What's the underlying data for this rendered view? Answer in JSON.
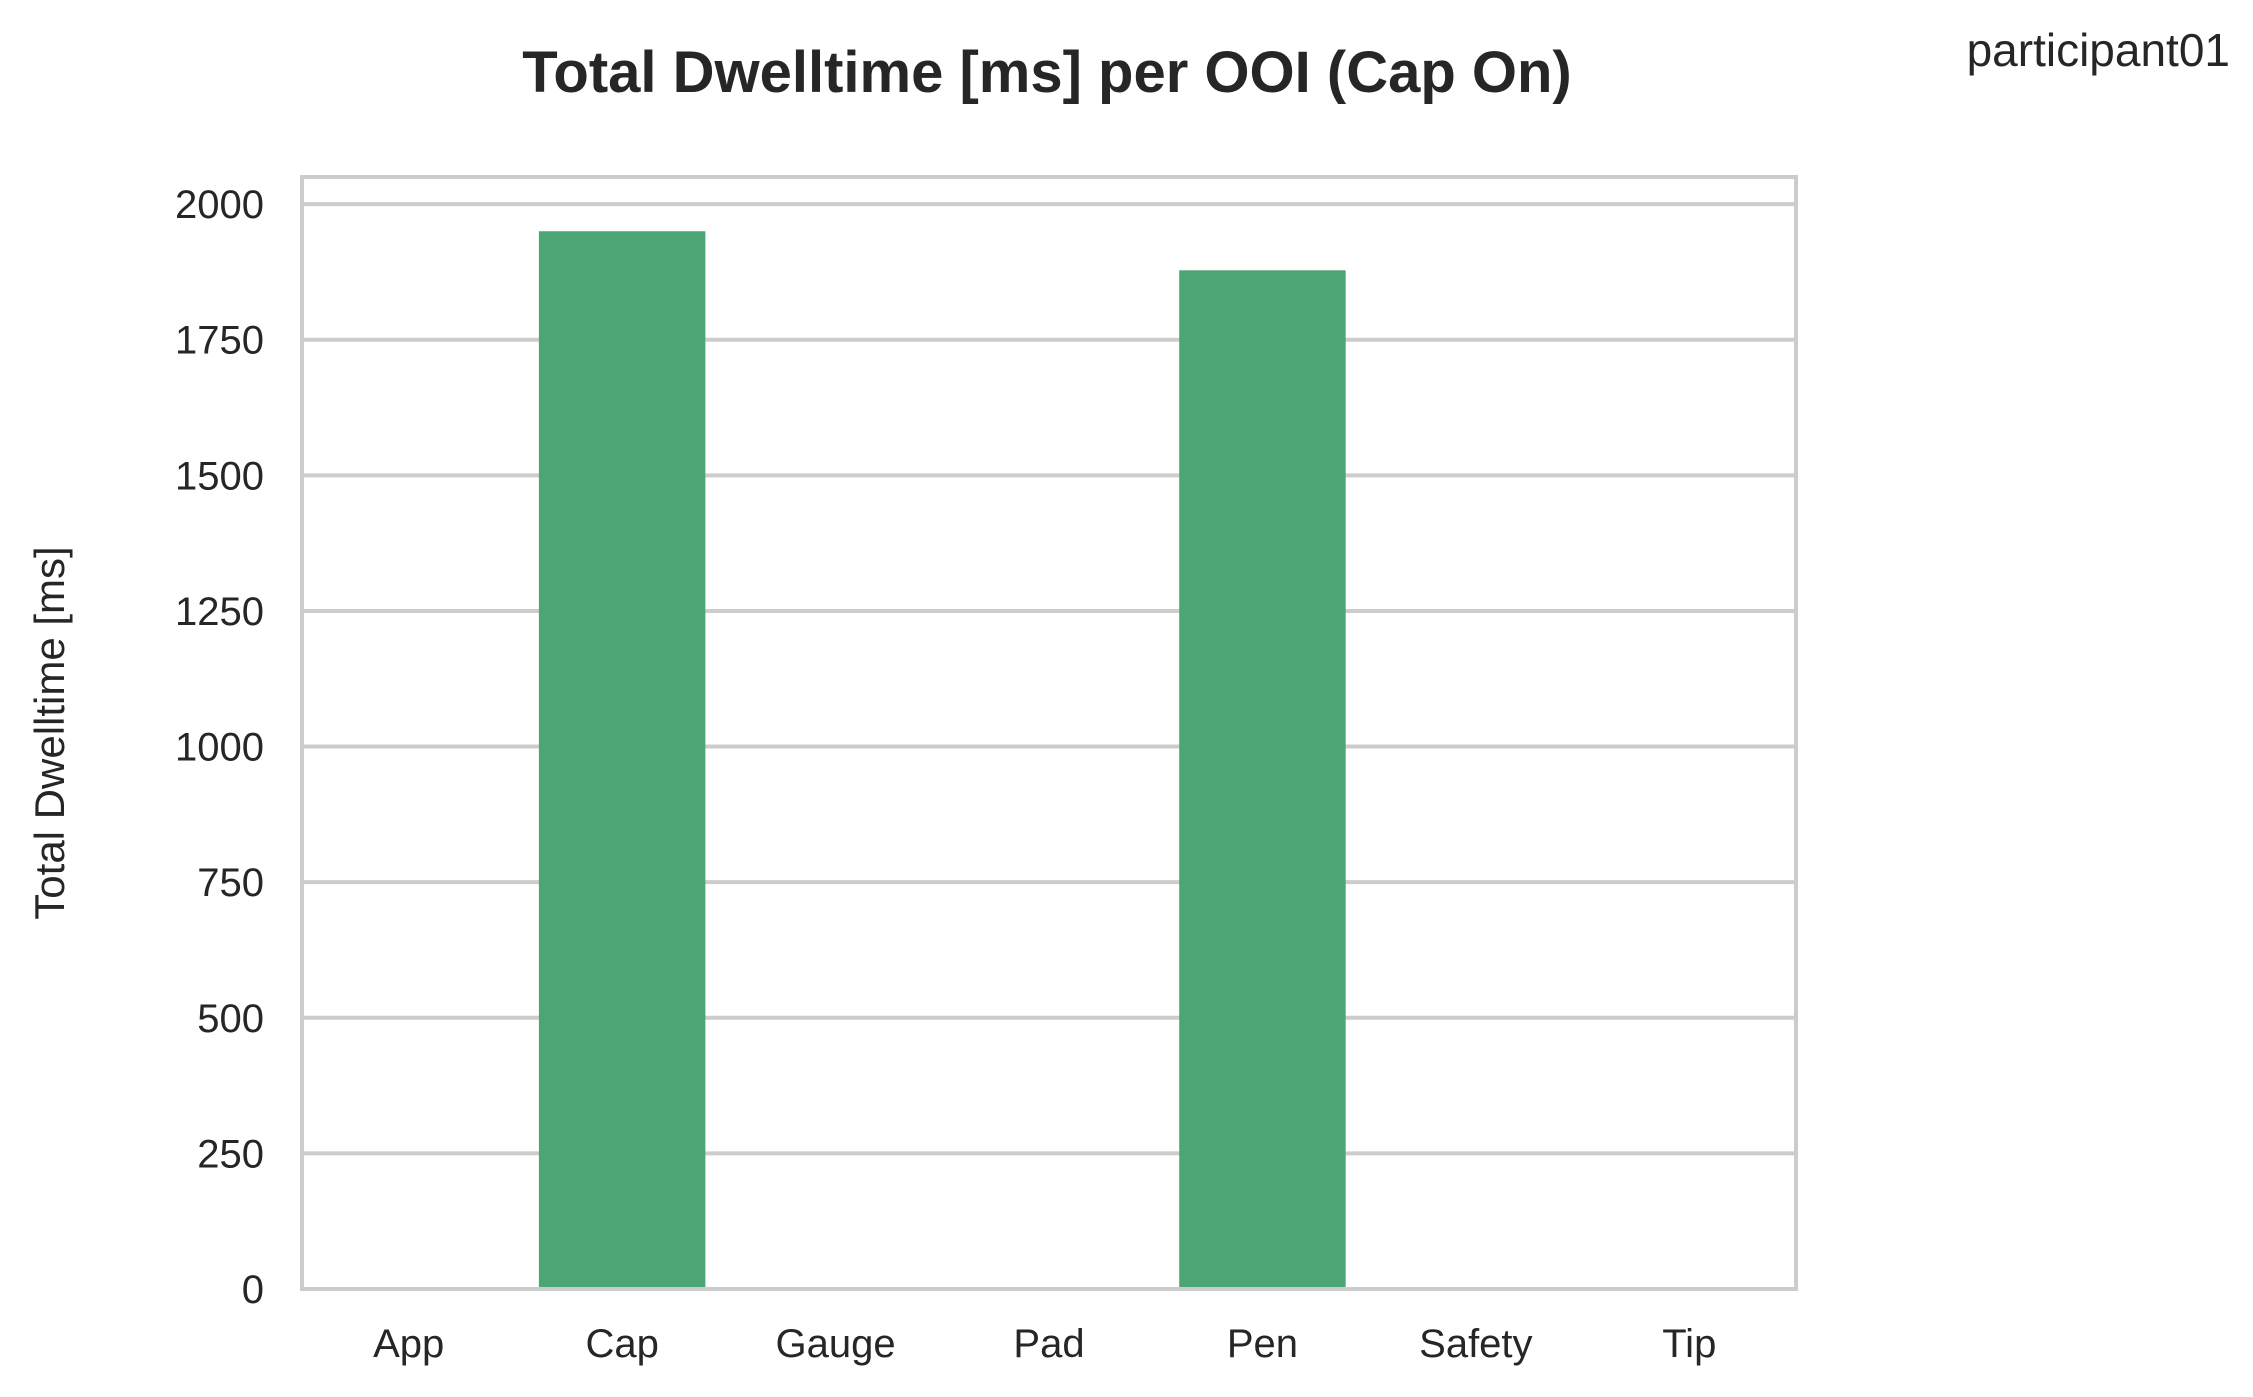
{
  "chart_data": {
    "type": "bar",
    "title": "Total Dwelltime [ms] per OOI (Cap On)",
    "corner_label": "participant01",
    "xlabel": "",
    "ylabel": "Total Dwelltime [ms]",
    "categories": [
      "App",
      "Cap",
      "Gauge",
      "Pad",
      "Pen",
      "Safety",
      "Tip"
    ],
    "values": [
      0,
      1950,
      0,
      0,
      1878,
      0,
      0
    ],
    "ylim": [
      0,
      2050
    ],
    "yticks": [
      0,
      250,
      500,
      750,
      1000,
      1250,
      1500,
      1750,
      2000
    ],
    "grid": true,
    "bar_color": "#4ca575",
    "grid_color": "#cccccc",
    "axes_edge_color": "#cccccc"
  }
}
